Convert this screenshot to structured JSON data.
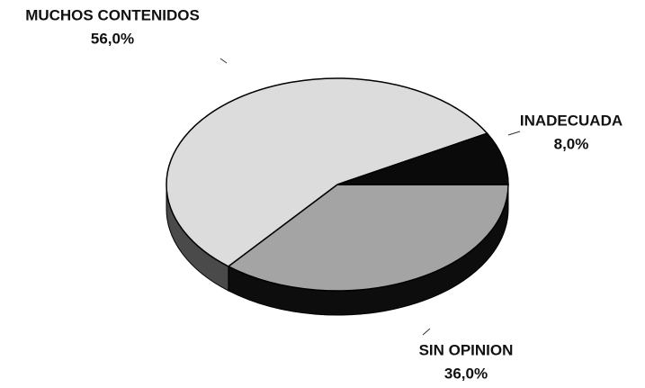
{
  "chart_data": {
    "type": "pie",
    "categories": [
      "SIN OPINION",
      "MUCHOS CONTENIDOS",
      "INADECUADA"
    ],
    "values": [
      36,
      56,
      8
    ],
    "value_labels": [
      "36,0%",
      "56,0%",
      "8,0%"
    ],
    "colors": [
      "#a4a4a4",
      "#dcdcdc",
      "#0a0a0a"
    ],
    "side_colors": [
      "#0d0d0d",
      "#4a4a4a",
      "#050505"
    ]
  }
}
